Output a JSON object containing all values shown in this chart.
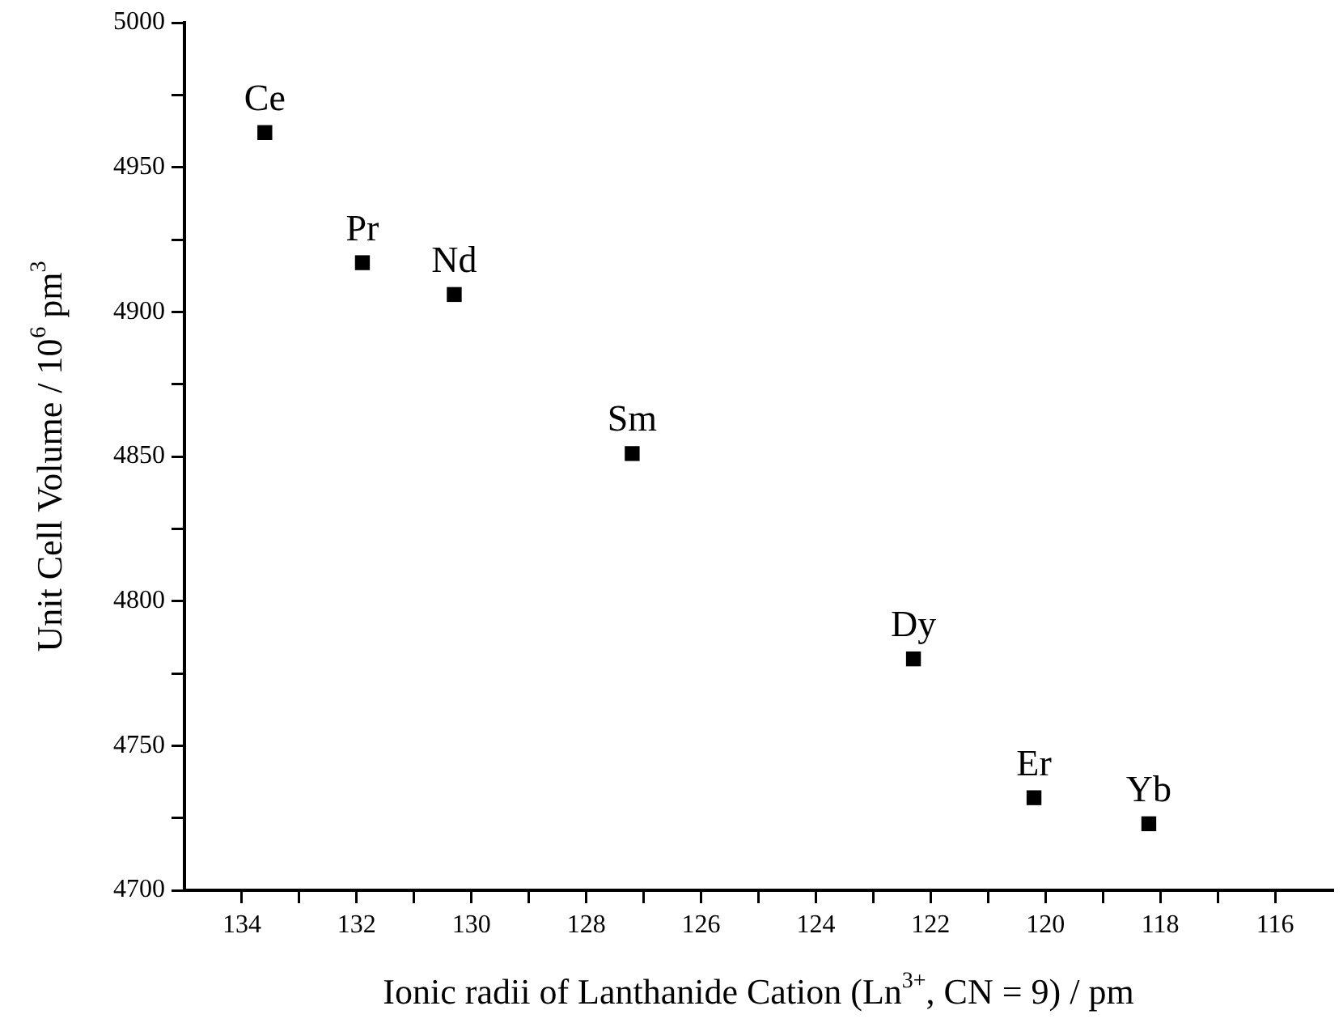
{
  "chart_data": {
    "type": "scatter",
    "xlabel": "Ionic radii of Lanthanide Cation (Ln$^{3+}$, CN = 9) / pm",
    "ylabel": "Unit Cell Volume / 10$^{6}$ pm$^{3}$",
    "series": [
      {
        "color": "#000000",
        "x": [
          133.6,
          131.9,
          130.3,
          127.2,
          122.3,
          120.2,
          118.2
        ],
        "values": [
          4962,
          4917,
          4906,
          4851,
          4780,
          4732,
          4723
        ]
      }
    ],
    "marker": "square",
    "grid": false,
    "legend": false,
    "xlim": [
      135,
      115
    ],
    "xticks": [
      134,
      {
        "value": 133,
        "label": null
      },
      132,
      {
        "value": 131,
        "label": null
      },
      130,
      {
        "value": 129,
        "label": null
      },
      128,
      {
        "value": 127,
        "label": null
      },
      126,
      {
        "value": 125,
        "label": null
      },
      124,
      {
        "value": 123,
        "label": null
      },
      122,
      {
        "value": 121,
        "label": null
      },
      120,
      {
        "value": 119,
        "label": null
      },
      118,
      {
        "value": 117,
        "label": null
      },
      116
    ],
    "ylim": [
      4700,
      5000
    ],
    "yticks": [
      4700,
      {
        "value": 4725,
        "label": null
      },
      4750,
      {
        "value": 4775,
        "label": null
      },
      4800,
      {
        "value": 4825,
        "label": null
      },
      4850,
      {
        "value": 4875,
        "label": null
      },
      4900,
      {
        "value": 4925,
        "label": null
      },
      4950,
      {
        "value": 4975,
        "label": null
      },
      5000
    ],
    "annotations": [
      {
        "text": "Ce",
        "x": 133.6,
        "y": 4962
      },
      {
        "text": "Pr",
        "x": 131.9,
        "y": 4917
      },
      {
        "text": "Nd",
        "x": 130.3,
        "y": 4906
      },
      {
        "text": "Sm",
        "x": 127.2,
        "y": 4851
      },
      {
        "text": "Dy",
        "x": 122.3,
        "y": 4780
      },
      {
        "text": "Er",
        "x": 120.2,
        "y": 4732
      },
      {
        "text": "Yb",
        "x": 118.2,
        "y": 4723
      }
    ]
  }
}
